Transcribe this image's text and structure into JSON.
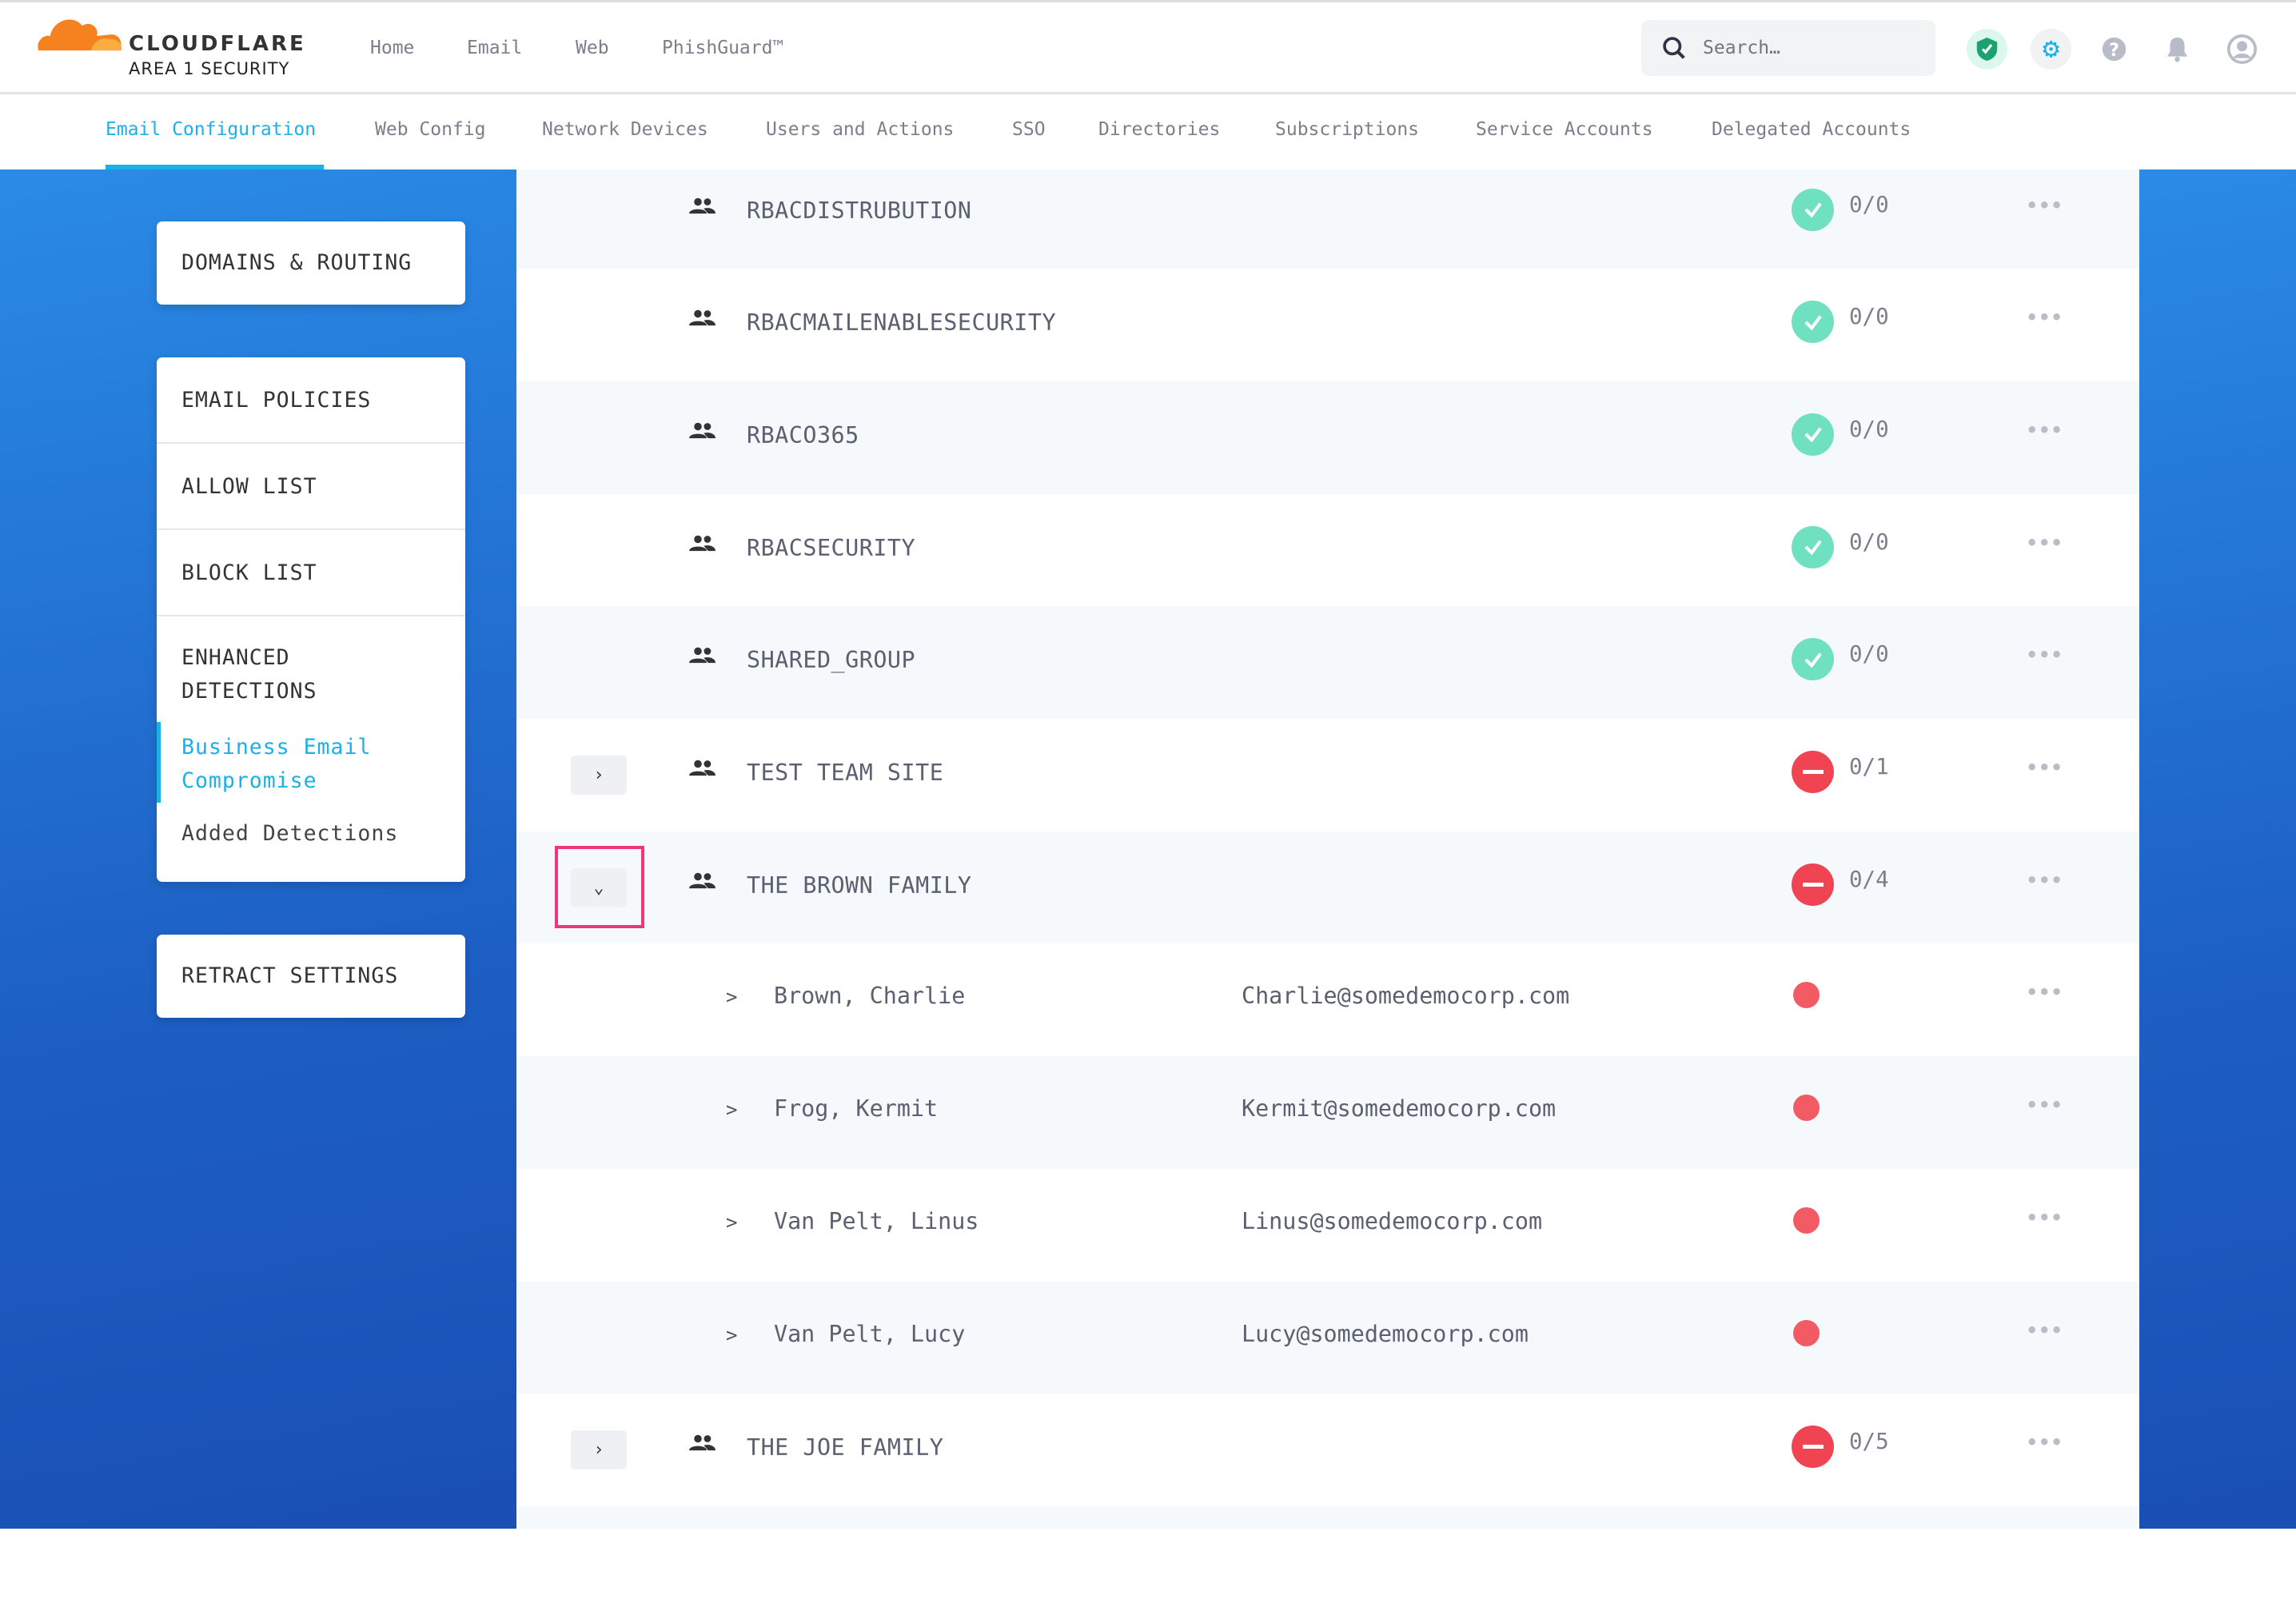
{
  "brand": {
    "name": "CLOUDFLARE",
    "sub": "AREA 1 SECURITY"
  },
  "topnav": [
    "Home",
    "Email",
    "Web",
    "PhishGuard™"
  ],
  "search": {
    "placeholder": "Search…"
  },
  "header_icons": [
    "shield-check-icon",
    "gear-icon",
    "help-icon",
    "bell-icon",
    "user-icon"
  ],
  "tabs": [
    "Email Configuration",
    "Web Config",
    "Network Devices",
    "Users and Actions",
    "SSO",
    "Directories",
    "Subscriptions",
    "Service Accounts",
    "Delegated Accounts"
  ],
  "active_tab": "Email Configuration",
  "sidebar": {
    "domains": "DOMAINS & ROUTING",
    "email_policies": "EMAIL POLICIES",
    "allow_list": "ALLOW LIST",
    "block_list": "BLOCK LIST",
    "enhanced_1": "ENHANCED",
    "enhanced_2": "DETECTIONS",
    "bec_1": "Business Email",
    "bec_2": "Compromise",
    "added": "Added Detections",
    "retract": "RETRACT SETTINGS"
  },
  "colors": {
    "accent": "#1ab0e8",
    "ok": "#6fe0c0",
    "error": "#f04452",
    "highlight": "#f0357a"
  },
  "groups": [
    {
      "name": "RBACDISTRUBUTION",
      "status": "ok",
      "count": "0/0"
    },
    {
      "name": "RBACMAILENABLESECURITY",
      "status": "ok",
      "count": "0/0"
    },
    {
      "name": "RBACO365",
      "status": "ok",
      "count": "0/0"
    },
    {
      "name": "RBACSECURITY",
      "status": "ok",
      "count": "0/0"
    },
    {
      "name": "SHARED_GROUP",
      "status": "ok",
      "count": "0/0"
    },
    {
      "name": "TEST TEAM SITE",
      "status": "error",
      "count": "0/1",
      "expandable": true
    },
    {
      "name": "THE BROWN FAMILY",
      "status": "error",
      "count": "0/4",
      "expanded": true
    }
  ],
  "members": [
    {
      "name": "Brown, Charlie",
      "email": "Charlie@somedemocorp.com"
    },
    {
      "name": "Frog, Kermit",
      "email": "Kermit@somedemocorp.com"
    },
    {
      "name": "Van Pelt, Linus",
      "email": "Linus@somedemocorp.com"
    },
    {
      "name": "Van Pelt, Lucy",
      "email": "Lucy@somedemocorp.com"
    }
  ],
  "last_group": {
    "name": "THE JOE FAMILY",
    "status": "error",
    "count": "0/5"
  },
  "more_label": "•••",
  "chevron_right": ">"
}
